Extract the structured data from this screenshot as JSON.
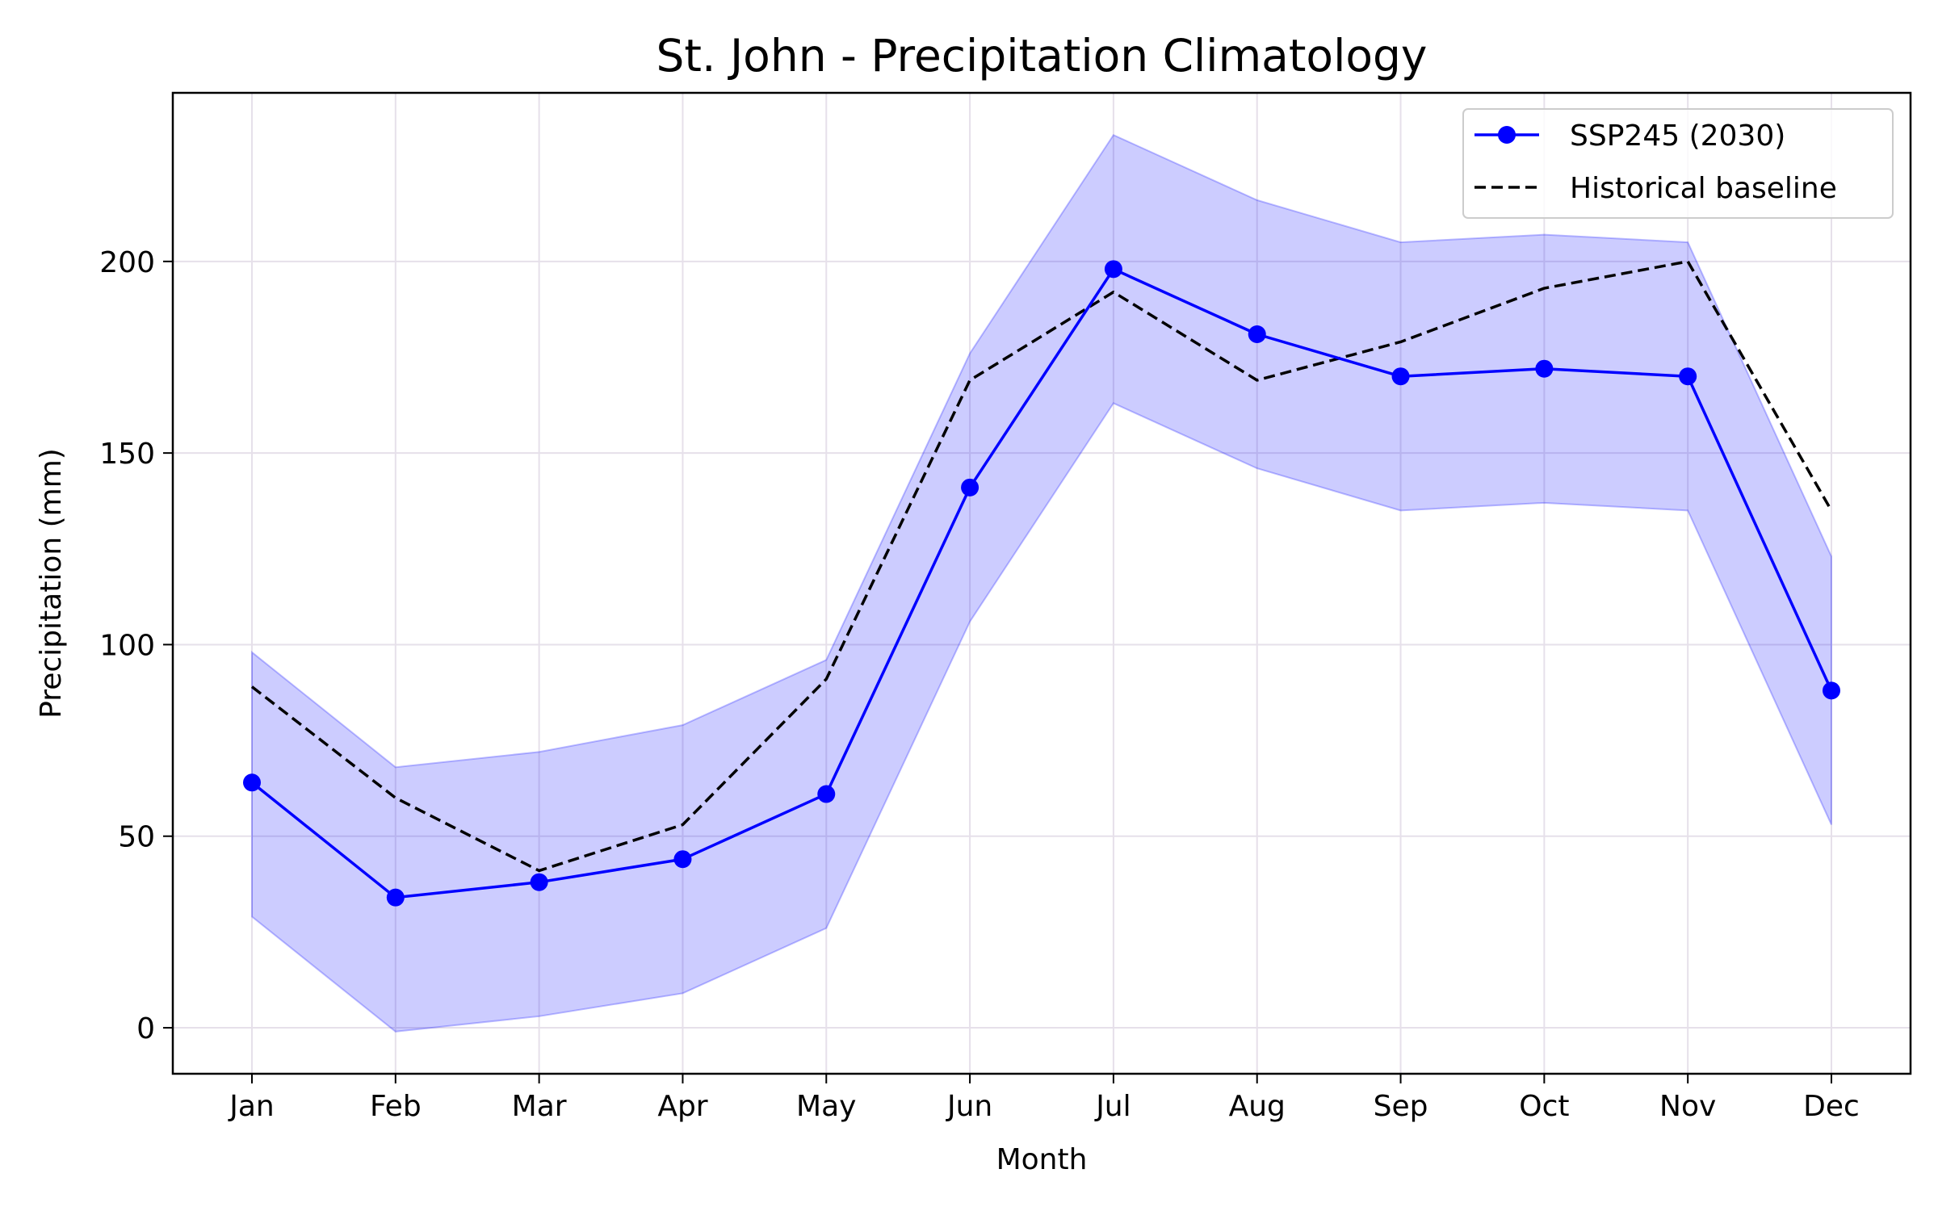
{
  "chart_data": {
    "type": "line",
    "title": "St. John - Precipitation Climatology",
    "xlabel": "Month",
    "ylabel": "Precipitation (mm)",
    "categories": [
      "Jan",
      "Feb",
      "Mar",
      "Apr",
      "May",
      "Jun",
      "Jul",
      "Aug",
      "Sep",
      "Oct",
      "Nov",
      "Dec"
    ],
    "ylim": [
      -12,
      244
    ],
    "yticks": [
      0,
      50,
      100,
      150,
      200
    ],
    "grid": true,
    "legend_position": "top-right",
    "series": [
      {
        "name": "SSP245 (2030)",
        "style": "solid-line-with-circle-markers",
        "color": "#0000ff",
        "values": [
          64,
          34,
          38,
          44,
          61,
          141,
          198,
          181,
          170,
          172,
          170,
          88
        ]
      },
      {
        "name": "Historical baseline",
        "style": "dashed-line",
        "color": "#000000",
        "values": [
          89,
          60,
          41,
          53,
          91,
          169,
          192,
          169,
          179,
          193,
          200,
          135
        ]
      }
    ],
    "band": {
      "series": "SSP245 (2030)",
      "color": "#0000ff",
      "opacity": 0.2,
      "upper": [
        98,
        68,
        72,
        79,
        96,
        176,
        233,
        216,
        205,
        207,
        205,
        123
      ],
      "lower": [
        29,
        -1,
        3,
        9,
        26,
        106,
        163,
        146,
        135,
        137,
        135,
        53
      ]
    }
  }
}
